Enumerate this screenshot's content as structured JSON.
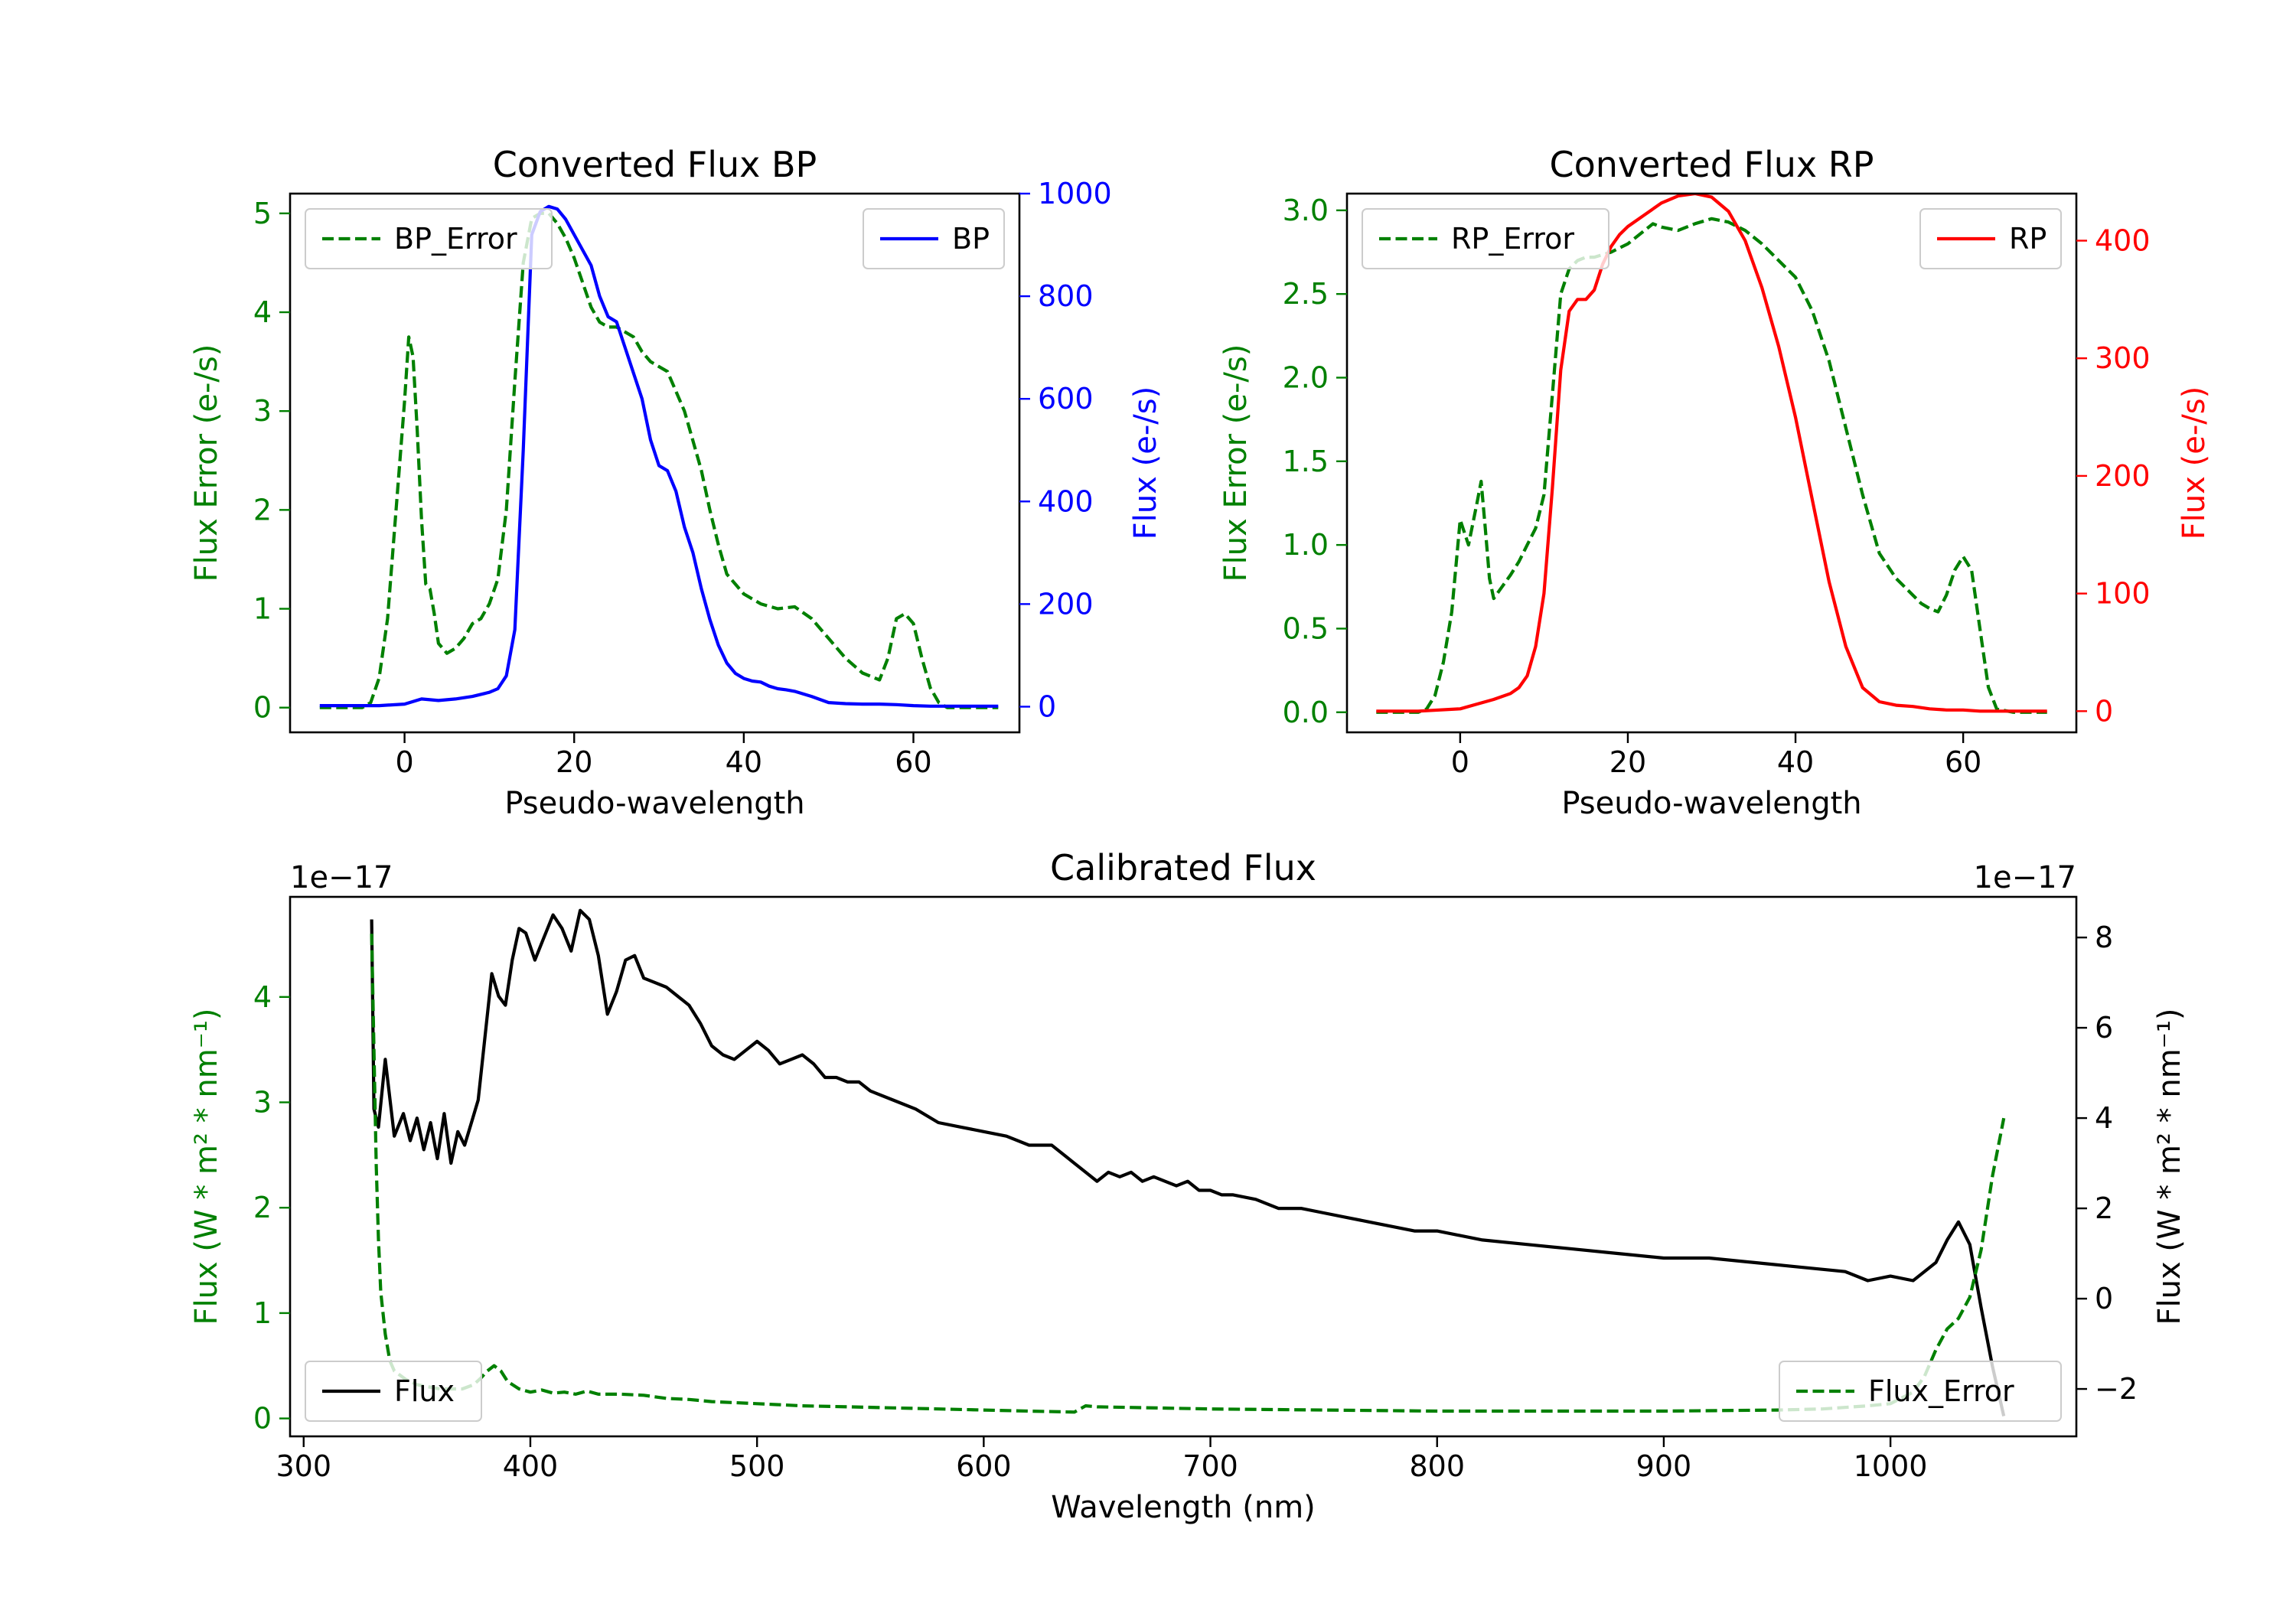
{
  "colors": {
    "green": "#008000",
    "blue": "#0000ff",
    "red": "#ff0000",
    "black": "#000000"
  },
  "chart_data": [
    {
      "type": "line",
      "title": "Converted Flux BP",
      "xlabel": "Pseudo-wavelength",
      "ylabel_left": "Flux Error (e-/s)",
      "ylabel_right": "Flux (e-/s)",
      "xlim": [
        -13.5,
        72.5
      ],
      "ylim_left": [
        -0.25,
        5.2
      ],
      "ylim_right": [
        -50,
        1000
      ],
      "xticks": [
        0,
        20,
        40,
        60
      ],
      "xtick_labels": [
        "0",
        "20",
        "40",
        "60"
      ],
      "yticks_left": [
        0,
        1,
        2,
        3,
        4,
        5
      ],
      "ytick_labels_left": [
        "0",
        "1",
        "2",
        "3",
        "4",
        "5"
      ],
      "yticks_right": [
        0,
        200,
        400,
        600,
        800,
        1000
      ],
      "ytick_labels_right": [
        "0",
        "200",
        "400",
        "600",
        "800",
        "1000"
      ],
      "left_axis_color": "#008000",
      "right_axis_color": "#0000ff",
      "series": [
        {
          "name": "BP_Error",
          "axis": "left",
          "color": "#008000",
          "dash": "dashed",
          "x": [
            -10,
            -5,
            -4,
            -3,
            -2,
            -1,
            0,
            0.5,
            1,
            1.5,
            2,
            2.5,
            3,
            3.5,
            4,
            5,
            6,
            7,
            8,
            9,
            10,
            11,
            12,
            13,
            14,
            15,
            16,
            17,
            18,
            19,
            20,
            21,
            22,
            23,
            24,
            25,
            26,
            27,
            28,
            29,
            30,
            31,
            32,
            33,
            34,
            35,
            36,
            37,
            38,
            40,
            42,
            44,
            46,
            48,
            50,
            52,
            54,
            56,
            57,
            58,
            59,
            60,
            61,
            62,
            63,
            64,
            66,
            70
          ],
          "y": [
            0,
            0,
            0.05,
            0.3,
            0.9,
            2.0,
            3.1,
            3.75,
            3.55,
            2.8,
            1.9,
            1.25,
            1.2,
            0.95,
            0.65,
            0.55,
            0.6,
            0.7,
            0.85,
            0.9,
            1.05,
            1.3,
            2.0,
            3.3,
            4.5,
            4.95,
            5.0,
            5.0,
            4.9,
            4.75,
            4.55,
            4.3,
            4.05,
            3.9,
            3.85,
            3.85,
            3.8,
            3.75,
            3.6,
            3.5,
            3.45,
            3.4,
            3.2,
            3.0,
            2.7,
            2.4,
            2.0,
            1.65,
            1.35,
            1.15,
            1.05,
            1.0,
            1.02,
            0.9,
            0.7,
            0.5,
            0.35,
            0.28,
            0.5,
            0.9,
            0.95,
            0.85,
            0.5,
            0.2,
            0.05,
            0,
            0,
            0
          ]
        },
        {
          "name": "BP",
          "axis": "right",
          "color": "#0000ff",
          "dash": "solid",
          "x": [
            -10,
            -5,
            -3,
            0,
            2,
            4,
            6,
            8,
            10,
            11,
            12,
            13,
            14,
            15,
            16,
            17,
            18,
            19,
            20,
            21,
            22,
            23,
            24,
            25,
            26,
            27,
            28,
            29,
            30,
            31,
            32,
            33,
            34,
            35,
            36,
            37,
            38,
            39,
            40,
            41,
            42,
            43,
            44,
            45,
            46,
            48,
            50,
            52,
            54,
            56,
            58,
            60,
            62,
            66,
            70
          ],
          "y": [
            2,
            2,
            2,
            5,
            15,
            12,
            15,
            20,
            28,
            35,
            60,
            150,
            500,
            920,
            965,
            975,
            970,
            950,
            920,
            890,
            860,
            800,
            760,
            750,
            700,
            650,
            600,
            520,
            470,
            460,
            420,
            350,
            300,
            230,
            170,
            120,
            85,
            65,
            55,
            50,
            48,
            40,
            35,
            33,
            30,
            20,
            8,
            6,
            5,
            5,
            4,
            2,
            1,
            1,
            1
          ]
        }
      ],
      "legends": [
        {
          "label": "BP_Error",
          "position": "upper left"
        },
        {
          "label": "BP",
          "position": "upper right"
        }
      ]
    },
    {
      "type": "line",
      "title": "Converted Flux RP",
      "xlabel": "Pseudo-wavelength",
      "ylabel_left": "Flux Error (e-/s)",
      "ylabel_right": "Flux (e-/s)",
      "xlim": [
        -13.5,
        73.5
      ],
      "ylim_left": [
        -0.12,
        3.1
      ],
      "ylim_right": [
        -18,
        440
      ],
      "xticks": [
        0,
        20,
        40,
        60
      ],
      "xtick_labels": [
        "0",
        "20",
        "40",
        "60"
      ],
      "yticks_left": [
        0,
        0.5,
        1.0,
        1.5,
        2.0,
        2.5,
        3.0
      ],
      "ytick_labels_left": [
        "0.0",
        "0.5",
        "1.0",
        "1.5",
        "2.0",
        "2.5",
        "3.0"
      ],
      "yticks_right": [
        0,
        100,
        200,
        300,
        400
      ],
      "ytick_labels_right": [
        "0",
        "100",
        "200",
        "300",
        "400"
      ],
      "left_axis_color": "#008000",
      "right_axis_color": "#ff0000",
      "series": [
        {
          "name": "RP_Error",
          "axis": "left",
          "color": "#008000",
          "dash": "dashed",
          "x": [
            -10,
            -5,
            -4,
            -3,
            -2,
            -1,
            0,
            1,
            2,
            2.5,
            3,
            3.5,
            4,
            5,
            6,
            7,
            8,
            9,
            10,
            11,
            12,
            13,
            14,
            15,
            16,
            18,
            20,
            22,
            23,
            24,
            26,
            28,
            30,
            32,
            34,
            36,
            38,
            40,
            42,
            44,
            46,
            48,
            50,
            52,
            54,
            55,
            56,
            57,
            58,
            59,
            60,
            61,
            62,
            63,
            64,
            66,
            70
          ],
          "y": [
            0,
            0,
            0.02,
            0.1,
            0.3,
            0.6,
            1.15,
            1.0,
            1.25,
            1.38,
            1.1,
            0.8,
            0.68,
            0.75,
            0.82,
            0.9,
            1.0,
            1.1,
            1.3,
            1.9,
            2.5,
            2.65,
            2.7,
            2.72,
            2.72,
            2.75,
            2.8,
            2.88,
            2.92,
            2.9,
            2.88,
            2.92,
            2.95,
            2.93,
            2.88,
            2.8,
            2.7,
            2.6,
            2.4,
            2.1,
            1.7,
            1.3,
            0.95,
            0.8,
            0.7,
            0.65,
            0.62,
            0.6,
            0.7,
            0.85,
            0.93,
            0.85,
            0.5,
            0.15,
            0.02,
            0,
            0
          ]
        },
        {
          "name": "RP",
          "axis": "right",
          "color": "#ff0000",
          "dash": "solid",
          "x": [
            -10,
            -5,
            0,
            2,
            4,
            6,
            7,
            8,
            9,
            10,
            11,
            12,
            13,
            14,
            15,
            16,
            17,
            18,
            19,
            20,
            22,
            24,
            26,
            28,
            30,
            32,
            34,
            36,
            38,
            40,
            42,
            44,
            46,
            48,
            50,
            52,
            54,
            56,
            58,
            60,
            62,
            66,
            70
          ],
          "y": [
            0,
            0,
            2,
            6,
            10,
            15,
            20,
            30,
            55,
            100,
            190,
            290,
            340,
            350,
            350,
            358,
            380,
            395,
            405,
            412,
            422,
            432,
            438,
            440,
            437,
            425,
            400,
            360,
            310,
            250,
            180,
            110,
            55,
            20,
            8,
            5,
            4,
            2,
            1,
            1,
            0,
            0,
            0
          ]
        }
      ],
      "legends": [
        {
          "label": "RP_Error",
          "position": "upper left"
        },
        {
          "label": "RP",
          "position": "upper right"
        }
      ]
    },
    {
      "type": "line",
      "title": "Calibrated Flux",
      "xlabel": "Wavelength (nm)",
      "ylabel_left": "Flux (W * m² * nm⁻¹)",
      "ylabel_right": "Flux (W * m² * nm⁻¹)",
      "offset_left": "1e−17",
      "offset_right": "1e−17",
      "xlim": [
        294,
        1082
      ],
      "ylim_left": [
        -0.17,
        4.95
      ],
      "ylim_right": [
        -3.05,
        8.9
      ],
      "xticks": [
        300,
        400,
        500,
        600,
        700,
        800,
        900,
        1000
      ],
      "xtick_labels": [
        "300",
        "400",
        "500",
        "600",
        "700",
        "800",
        "900",
        "1000"
      ],
      "yticks_left": [
        0,
        1,
        2,
        3,
        4
      ],
      "ytick_labels_left": [
        "0",
        "1",
        "2",
        "3",
        "4"
      ],
      "yticks_right": [
        -2,
        0,
        2,
        4,
        6,
        8
      ],
      "ytick_labels_right": [
        "−2",
        "0",
        "2",
        "4",
        "6",
        "8"
      ],
      "left_axis_color": "#008000",
      "right_axis_color": "#000000",
      "series": [
        {
          "name": "Flux",
          "axis": "right",
          "color": "#000000",
          "dash": "solid",
          "x": [
            330,
            331,
            333,
            336,
            340,
            344,
            347,
            350,
            353,
            356,
            359,
            362,
            365,
            368,
            371,
            374,
            377,
            380,
            383,
            386,
            389,
            392,
            395,
            398,
            402,
            406,
            410,
            414,
            418,
            422,
            426,
            430,
            434,
            438,
            442,
            446,
            450,
            455,
            460,
            465,
            470,
            475,
            480,
            485,
            490,
            495,
            500,
            505,
            510,
            515,
            520,
            525,
            530,
            535,
            540,
            545,
            550,
            560,
            570,
            580,
            590,
            600,
            610,
            620,
            630,
            640,
            645,
            650,
            655,
            660,
            665,
            670,
            675,
            680,
            685,
            690,
            695,
            700,
            705,
            710,
            720,
            730,
            740,
            750,
            760,
            770,
            780,
            790,
            800,
            820,
            840,
            860,
            880,
            900,
            920,
            940,
            960,
            980,
            990,
            1000,
            1010,
            1020,
            1025,
            1030,
            1035,
            1040,
            1045,
            1050
          ],
          "y": [
            8.4,
            4.2,
            3.8,
            5.3,
            3.6,
            4.1,
            3.5,
            4.0,
            3.3,
            3.9,
            3.1,
            4.1,
            3.0,
            3.7,
            3.4,
            3.9,
            4.4,
            5.8,
            7.2,
            6.7,
            6.5,
            7.5,
            8.2,
            8.1,
            7.5,
            8.0,
            8.5,
            8.2,
            7.7,
            8.6,
            8.4,
            7.6,
            6.3,
            6.8,
            7.5,
            7.6,
            7.1,
            7.0,
            6.9,
            6.7,
            6.5,
            6.1,
            5.6,
            5.4,
            5.3,
            5.5,
            5.7,
            5.5,
            5.2,
            5.3,
            5.4,
            5.2,
            4.9,
            4.9,
            4.8,
            4.8,
            4.6,
            4.4,
            4.2,
            3.9,
            3.8,
            3.7,
            3.6,
            3.4,
            3.4,
            3.0,
            2.8,
            2.6,
            2.8,
            2.7,
            2.8,
            2.6,
            2.7,
            2.6,
            2.5,
            2.6,
            2.4,
            2.4,
            2.3,
            2.3,
            2.2,
            2.0,
            2.0,
            1.9,
            1.8,
            1.7,
            1.6,
            1.5,
            1.5,
            1.3,
            1.2,
            1.1,
            1.0,
            0.9,
            0.9,
            0.8,
            0.7,
            0.6,
            0.4,
            0.5,
            0.4,
            0.8,
            1.3,
            1.7,
            1.2,
            -0.2,
            -1.5,
            -2.6
          ]
        },
        {
          "name": "Flux_Error",
          "axis": "left",
          "color": "#008000",
          "dash": "dashed",
          "x": [
            330,
            331,
            332,
            333,
            334,
            336,
            338,
            340,
            345,
            350,
            360,
            370,
            375,
            378,
            381,
            384,
            387,
            390,
            395,
            400,
            405,
            410,
            415,
            420,
            425,
            430,
            440,
            450,
            460,
            470,
            480,
            500,
            520,
            540,
            560,
            580,
            600,
            620,
            640,
            645,
            650,
            700,
            750,
            800,
            850,
            900,
            950,
            970,
            990,
            1000,
            1010,
            1015,
            1020,
            1025,
            1030,
            1035,
            1040,
            1045,
            1050
          ],
          "y": [
            4.6,
            3.5,
            2.4,
            1.7,
            1.2,
            0.8,
            0.55,
            0.45,
            0.37,
            0.32,
            0.28,
            0.28,
            0.32,
            0.38,
            0.45,
            0.5,
            0.45,
            0.35,
            0.28,
            0.25,
            0.27,
            0.24,
            0.25,
            0.23,
            0.26,
            0.23,
            0.23,
            0.22,
            0.19,
            0.18,
            0.16,
            0.14,
            0.12,
            0.11,
            0.1,
            0.09,
            0.08,
            0.07,
            0.06,
            0.12,
            0.11,
            0.09,
            0.08,
            0.07,
            0.07,
            0.07,
            0.08,
            0.09,
            0.12,
            0.14,
            0.25,
            0.4,
            0.65,
            0.85,
            0.95,
            1.15,
            1.6,
            2.3,
            2.85
          ]
        }
      ],
      "legends": [
        {
          "label": "Flux",
          "position": "lower left"
        },
        {
          "label": "Flux_Error",
          "position": "lower right"
        }
      ]
    }
  ]
}
